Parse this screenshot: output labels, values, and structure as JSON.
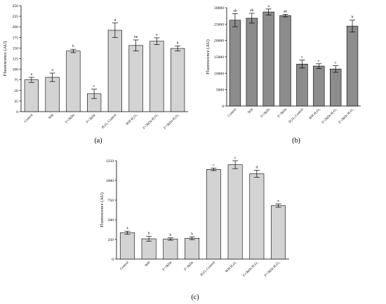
{
  "colors": {
    "light_bar": "#d3d3d3",
    "dark_bar": "#8c8c8c",
    "bar_edge": "#000000"
  },
  "chart_data": [
    {
      "type": "bar",
      "panel_label": "(a)",
      "ylabel": "Fluorescence (AU)",
      "ylim": [
        0,
        250
      ],
      "yticks": [
        0,
        25,
        50,
        75,
        100,
        125,
        150,
        175,
        200,
        225,
        250
      ],
      "categories": [
        "Control",
        "WH",
        "F<3kDa",
        "F>3kDa",
        "H₂O₂ Control",
        "WH H₂O₂",
        "F<3kDa H₂O₂",
        "F>3kDa H₂O₂"
      ],
      "values": [
        75,
        81,
        143,
        42,
        192,
        156,
        166,
        149
      ],
      "errors": [
        6,
        10,
        4,
        11,
        17,
        13,
        8,
        6
      ],
      "letters": [
        "a",
        "a",
        "b",
        "c",
        "d",
        "be",
        "e",
        "b"
      ],
      "bar_color": "light"
    },
    {
      "type": "bar",
      "panel_label": "(b)",
      "ylabel": "Fluorescence (AU)",
      "ylim": [
        0,
        30000
      ],
      "yticks": [
        0,
        5000,
        10000,
        15000,
        20000,
        25000,
        30000
      ],
      "categories": [
        "Control",
        "WH",
        "F<3kDa",
        "F>3kDa",
        "H₂O₂ Control",
        "WH H₂O₂",
        "F<3kDa H₂O₂",
        "F>3kDa H₂O₂"
      ],
      "values": [
        26200,
        26800,
        28700,
        27600,
        12800,
        12200,
        11300,
        24400
      ],
      "errors": [
        2000,
        1500,
        900,
        400,
        1200,
        700,
        1000,
        1800
      ],
      "letters": [
        "ab",
        "ab",
        "a",
        "ab",
        "c",
        "c",
        "c",
        "b"
      ],
      "bar_color": "dark"
    },
    {
      "type": "bar",
      "panel_label": "(c)",
      "ylabel": "Fluorescence (AU)",
      "ylim": [
        0,
        1250
      ],
      "yticks": [
        0,
        250,
        500,
        750,
        1000,
        1250
      ],
      "categories": [
        "Control",
        "WH",
        "F<3kDa",
        "F>3kDa",
        "H₂O₂ Control",
        "WH H₂O₂",
        "F<3kDa H₂O₂",
        "F>3kDa H₂O₂"
      ],
      "values": [
        335,
        258,
        255,
        265,
        1140,
        1200,
        1085,
        680
      ],
      "errors": [
        20,
        30,
        15,
        18,
        15,
        50,
        45,
        20
      ],
      "letters": [
        "a",
        "b",
        "b",
        "b",
        "c",
        "c",
        "d",
        "e"
      ],
      "bar_color": "light"
    }
  ]
}
